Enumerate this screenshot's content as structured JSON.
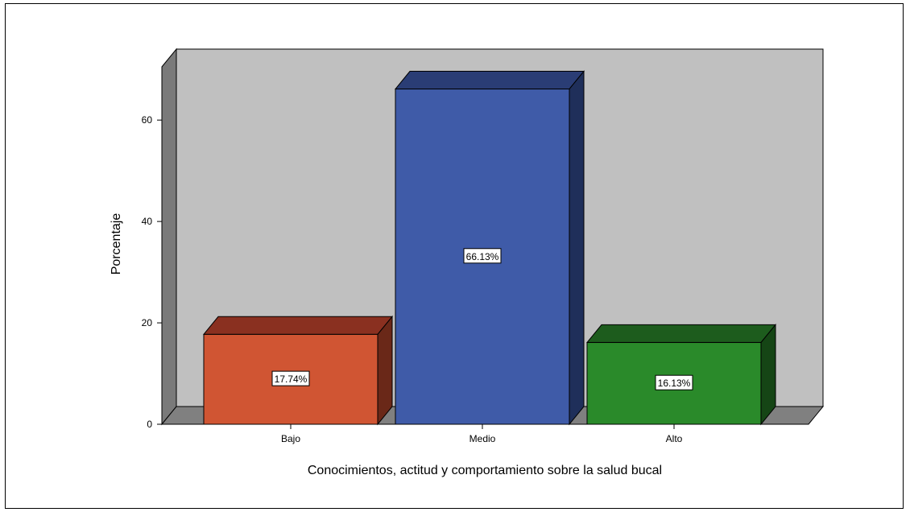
{
  "chart_data": {
    "type": "bar",
    "title": "",
    "xlabel": "Conocimientos, actitud y comportamiento sobre la salud bucal",
    "ylabel": "Porcentaje",
    "ylim": [
      0,
      74
    ],
    "yticks": [
      0,
      20,
      40,
      60
    ],
    "categories": [
      "Bajo",
      "Medio",
      "Alto"
    ],
    "values": [
      17.74,
      66.13,
      16.13
    ],
    "data_labels": [
      "17.74%",
      "66.13%",
      "16.13%"
    ],
    "colors": [
      {
        "front": "#d05533",
        "top": "#8a3020",
        "side": "#6a2818"
      },
      {
        "front": "#3f5ba8",
        "top": "#2a3d75",
        "side": "#1f2f5a"
      },
      {
        "front": "#2a8a2a",
        "top": "#1d5c1d",
        "side": "#154515"
      }
    ],
    "style": {
      "wall": "#c0c0c0",
      "floor": "#808080",
      "three_d": true,
      "grid": false
    }
  }
}
